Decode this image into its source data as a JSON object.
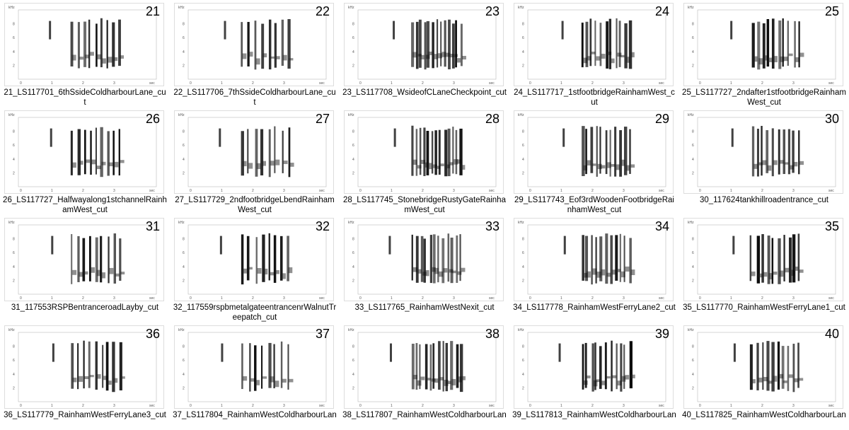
{
  "axis": {
    "y_unit": "kHz",
    "x_unit": "sec",
    "y_labels": [
      "2",
      "4",
      "6",
      "8"
    ],
    "x_labels": [
      "0",
      "1",
      "2",
      "3"
    ]
  },
  "items": [
    {
      "number": "21",
      "caption": "21_LS117701_6thSsideColdharbourLane_cut"
    },
    {
      "number": "22",
      "caption": "22_LS117706_7thSsideColdharbourLane_cut"
    },
    {
      "number": "23",
      "caption": "23_LS117708_WsideofCLaneCheckpoint_cut"
    },
    {
      "number": "24",
      "caption": "24_LS117717_1stfootbridgeRainhamWest_cut"
    },
    {
      "number": "25",
      "caption": "25_LS117727_2ndafter1stfootbridgeRainhamWest_cut"
    },
    {
      "number": "26",
      "caption": "26_LS117727_Halfwayalong1stchannelRainhamWest_cut"
    },
    {
      "number": "27",
      "caption": "27_LS117729_2ndfootbridgeLbendRainhamWest_cut"
    },
    {
      "number": "28",
      "caption": "28_LS117745_StonebridgeRustyGateRainhamWest_cut"
    },
    {
      "number": "29",
      "caption": "29_LS117743_Eof3rdWoodenFootbridgeRainhamWest_cut"
    },
    {
      "number": "30",
      "caption": "30_117624tankhillroadentrance_cut"
    },
    {
      "number": "31",
      "caption": "31_117553RSPBentranceroadLayby_cut"
    },
    {
      "number": "32",
      "caption": "32_117559rspbmetalgateentrancenrWalnutTreepatch_cut"
    },
    {
      "number": "33",
      "caption": "33_LS117765_RainhamWestNexit_cut"
    },
    {
      "number": "34",
      "caption": "34_LS117778_RainhamWestFerryLane2_cut"
    },
    {
      "number": "35",
      "caption": "35_LS117770_RainhamWestFerryLane1_cut"
    },
    {
      "number": "36",
      "caption": "36_LS117779_RainhamWestFerryLane3_cut"
    },
    {
      "number": "37",
      "caption": "37_LS117804_RainhamWestColdharbourLan"
    },
    {
      "number": "38",
      "caption": "38_LS117807_RainhamWestColdharbourLan"
    },
    {
      "number": "39",
      "caption": "39_LS117813_RainhamWestColdharbourLan"
    },
    {
      "number": "40",
      "caption": "40_LS117825_RainhamWestColdharbourLan"
    }
  ]
}
